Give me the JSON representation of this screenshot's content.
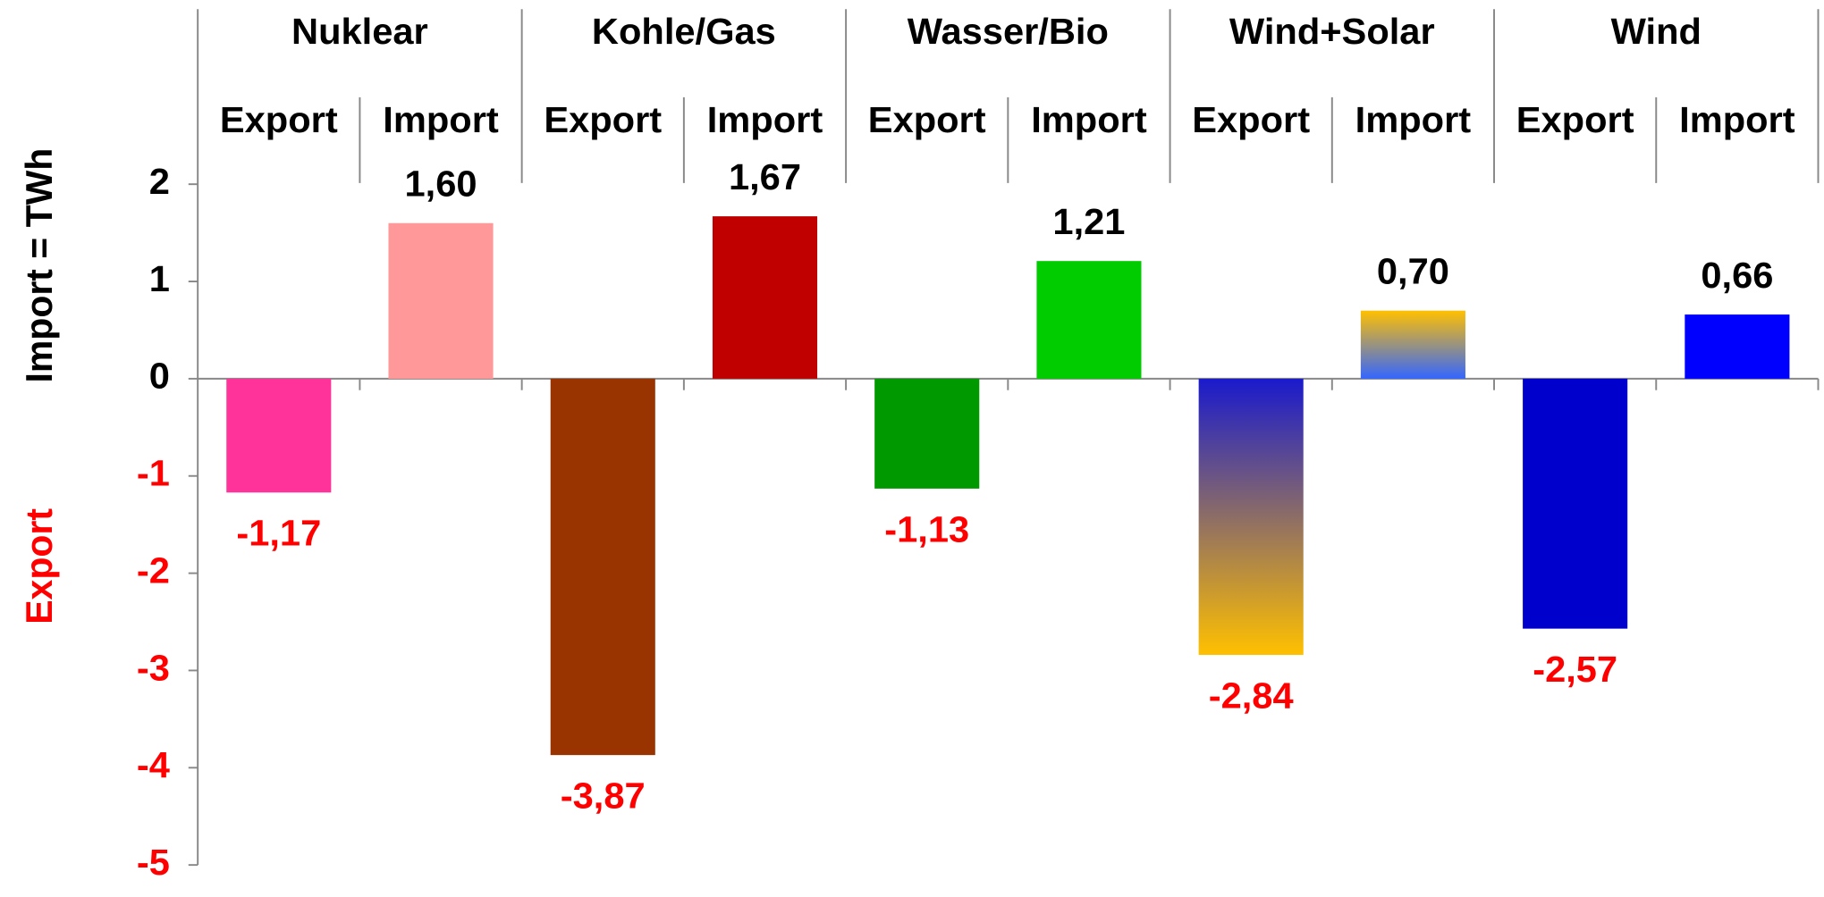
{
  "chart_data": {
    "type": "bar",
    "groups": [
      "Nuklear",
      "Kohle/Gas",
      "Wasser/Bio",
      "Wind+Solar",
      "Wind"
    ],
    "categories": [
      "Export",
      "Import",
      "Export",
      "Import",
      "Export",
      "Import",
      "Export",
      "Import",
      "Export",
      "Import"
    ],
    "values": [
      -1.17,
      1.6,
      -3.87,
      1.67,
      -1.13,
      1.21,
      -2.84,
      0.7,
      -2.57,
      0.66
    ],
    "value_labels": [
      "-1,17",
      "1,60",
      "-3,87",
      "1,67",
      "-1,13",
      "1,21",
      "-2,84",
      "0,70",
      "-2,57",
      "0,66"
    ],
    "colors": [
      "#ff3399",
      "#ff9999",
      "#993300",
      "#c00000",
      "#009900",
      "#00cc00",
      [
        "#1a1acc",
        "#ffc000"
      ],
      [
        "#ffc000",
        "#3366ff"
      ],
      "#0000cc",
      "#0000ff"
    ],
    "ylabel": "Import =  TWh",
    "ylabel_negative": "Export",
    "negative_color": "#ff0000",
    "ylim": [
      -5,
      3.8
    ],
    "yticks": [
      2,
      1,
      0,
      -1,
      -2,
      -3,
      -4,
      -5
    ]
  }
}
